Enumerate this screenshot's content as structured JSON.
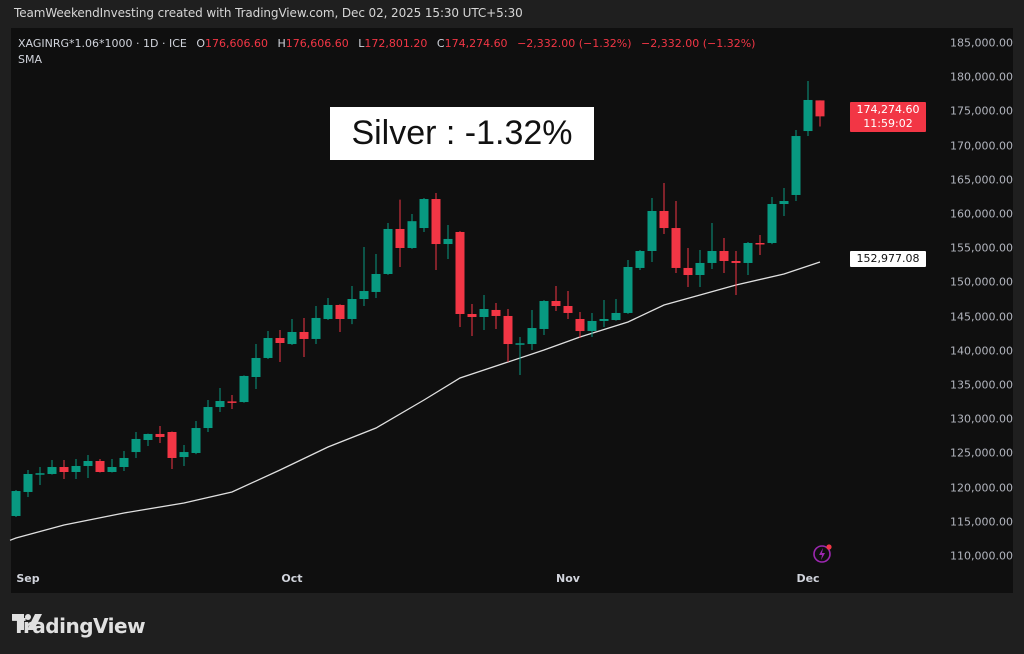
{
  "credit": "TeamWeekendInvesting created with TradingView.com, Dec 02, 2025 15:30 UTC+5:30",
  "legend": {
    "symbol": "XAGINRG*1.06*1000 · 1D · ICE",
    "o_label": "O",
    "o": "176,606.60",
    "h_label": "H",
    "h": "176,606.60",
    "l_label": "L",
    "l": "172,801.20",
    "c_label": "C",
    "c": "174,274.60",
    "change": "−2,332.00 (−1.32%)",
    "change2": "−2,332.00 (−1.32%)",
    "indicator": "SMA"
  },
  "annotation": "Silver : -1.32%",
  "last_price_tag": {
    "price": "174,274.60",
    "countdown": "11:59:02"
  },
  "sma_tag": "152,977.08",
  "logo_text": "TradingView",
  "colors": {
    "up": "#089981",
    "down": "#f23645",
    "sma": "#e0e0e0",
    "background": "#0f0f0f",
    "bolt": "#9c27b0"
  },
  "icons": [
    "tradingview-logo-icon",
    "lightning-bolt-icon"
  ],
  "chart_data": {
    "type": "candlestick",
    "interval": "1D",
    "ylim": [
      110000,
      185000
    ],
    "grid": false,
    "price_ticks": [
      "185,000.00",
      "180,000.00",
      "175,000.00",
      "170,000.00",
      "165,000.00",
      "160,000.00",
      "155,000.00",
      "150,000.00",
      "145,000.00",
      "140,000.00",
      "135,000.00",
      "130,000.00",
      "125,000.00",
      "120,000.00",
      "115,000.00",
      "110,000.00"
    ],
    "price_tick_values": [
      185000,
      180000,
      175000,
      170000,
      165000,
      160000,
      155000,
      150000,
      145000,
      140000,
      135000,
      130000,
      125000,
      120000,
      115000,
      110000
    ],
    "time_ticks": [
      {
        "label": "Sep",
        "date": "2025-09-01"
      },
      {
        "label": "Oct",
        "date": "2025-10-01"
      },
      {
        "label": "Nov",
        "date": "2025-11-03"
      },
      {
        "label": "Dec",
        "date": "2025-12-01"
      }
    ],
    "candles": [
      {
        "date": "2025-08-29",
        "o": 115850,
        "h": 119650,
        "l": 115700,
        "c": 119500
      },
      {
        "date": "2025-09-01",
        "o": 119360,
        "h": 122570,
        "l": 118630,
        "c": 121990
      },
      {
        "date": "2025-09-02",
        "o": 121990,
        "h": 123010,
        "l": 120380,
        "c": 122100
      },
      {
        "date": "2025-09-03",
        "o": 121990,
        "h": 124040,
        "l": 121900,
        "c": 123010
      },
      {
        "date": "2025-09-04",
        "o": 123010,
        "h": 124040,
        "l": 121260,
        "c": 122280
      },
      {
        "date": "2025-09-05",
        "o": 122280,
        "h": 124180,
        "l": 121260,
        "c": 123160
      },
      {
        "date": "2025-09-08",
        "o": 123160,
        "h": 124770,
        "l": 121400,
        "c": 123890
      },
      {
        "date": "2025-09-09",
        "o": 123890,
        "h": 124180,
        "l": 122200,
        "c": 122280
      },
      {
        "date": "2025-09-10",
        "o": 122280,
        "h": 124180,
        "l": 122200,
        "c": 123010
      },
      {
        "date": "2025-09-11",
        "o": 123010,
        "h": 125350,
        "l": 122430,
        "c": 124330
      },
      {
        "date": "2025-09-12",
        "o": 125200,
        "h": 128130,
        "l": 124330,
        "c": 127110
      },
      {
        "date": "2025-09-15",
        "o": 126960,
        "h": 127900,
        "l": 126080,
        "c": 127840
      },
      {
        "date": "2025-09-16",
        "o": 127840,
        "h": 129010,
        "l": 126520,
        "c": 127400
      },
      {
        "date": "2025-09-17",
        "o": 128130,
        "h": 128200,
        "l": 122720,
        "c": 124330
      },
      {
        "date": "2025-09-18",
        "o": 124470,
        "h": 126230,
        "l": 123160,
        "c": 125200
      },
      {
        "date": "2025-09-19",
        "o": 125060,
        "h": 129740,
        "l": 124900,
        "c": 128710
      },
      {
        "date": "2025-09-22",
        "o": 128710,
        "h": 132810,
        "l": 128130,
        "c": 131780
      },
      {
        "date": "2025-09-23",
        "o": 131780,
        "h": 134560,
        "l": 131050,
        "c": 132660
      },
      {
        "date": "2025-09-24",
        "o": 132600,
        "h": 133540,
        "l": 131490,
        "c": 132510
      },
      {
        "date": "2025-09-25",
        "o": 132510,
        "h": 136400,
        "l": 132400,
        "c": 136320
      },
      {
        "date": "2025-09-26",
        "o": 136170,
        "h": 140990,
        "l": 134420,
        "c": 138950
      },
      {
        "date": "2025-09-29",
        "o": 138950,
        "h": 142890,
        "l": 138800,
        "c": 141870
      },
      {
        "date": "2025-09-30",
        "o": 141870,
        "h": 143040,
        "l": 138360,
        "c": 141140
      },
      {
        "date": "2025-10-01",
        "o": 140990,
        "h": 144650,
        "l": 140850,
        "c": 142750
      },
      {
        "date": "2025-10-02",
        "o": 142750,
        "h": 144800,
        "l": 139090,
        "c": 141730
      },
      {
        "date": "2025-10-03",
        "o": 141730,
        "h": 146550,
        "l": 140990,
        "c": 144800
      },
      {
        "date": "2025-10-06",
        "o": 144650,
        "h": 147720,
        "l": 144500,
        "c": 146700
      },
      {
        "date": "2025-10-07",
        "o": 146700,
        "h": 146800,
        "l": 142750,
        "c": 144650
      },
      {
        "date": "2025-10-08",
        "o": 144650,
        "h": 149470,
        "l": 143900,
        "c": 147570
      },
      {
        "date": "2025-10-09",
        "o": 147570,
        "h": 155180,
        "l": 146550,
        "c": 148740
      },
      {
        "date": "2025-10-10",
        "o": 148600,
        "h": 154150,
        "l": 147720,
        "c": 151230
      },
      {
        "date": "2025-10-13",
        "o": 151230,
        "h": 158680,
        "l": 151100,
        "c": 157810
      },
      {
        "date": "2025-10-14",
        "o": 157810,
        "h": 162100,
        "l": 152250,
        "c": 155030
      },
      {
        "date": "2025-10-15",
        "o": 155030,
        "h": 160000,
        "l": 154900,
        "c": 158950
      },
      {
        "date": "2025-10-16",
        "o": 157950,
        "h": 162340,
        "l": 157370,
        "c": 162190
      },
      {
        "date": "2025-10-17",
        "o": 162190,
        "h": 163070,
        "l": 151810,
        "c": 155610
      },
      {
        "date": "2025-10-20",
        "o": 155610,
        "h": 158390,
        "l": 153420,
        "c": 156350
      },
      {
        "date": "2025-10-21",
        "o": 157370,
        "h": 157500,
        "l": 143480,
        "c": 145380
      },
      {
        "date": "2025-10-22",
        "o": 145380,
        "h": 146840,
        "l": 142160,
        "c": 144940
      },
      {
        "date": "2025-10-23",
        "o": 144940,
        "h": 148160,
        "l": 143040,
        "c": 146110
      },
      {
        "date": "2025-10-24",
        "o": 145970,
        "h": 146990,
        "l": 143190,
        "c": 145090
      },
      {
        "date": "2025-10-27",
        "o": 145090,
        "h": 146110,
        "l": 138360,
        "c": 140990
      },
      {
        "date": "2025-10-28",
        "o": 140990,
        "h": 142020,
        "l": 136460,
        "c": 141100
      },
      {
        "date": "2025-10-29",
        "o": 140990,
        "h": 145970,
        "l": 140120,
        "c": 143330
      },
      {
        "date": "2025-10-30",
        "o": 143190,
        "h": 147400,
        "l": 142310,
        "c": 147280
      },
      {
        "date": "2025-10-31",
        "o": 147280,
        "h": 149470,
        "l": 145820,
        "c": 146550
      },
      {
        "date": "2025-11-03",
        "o": 146550,
        "h": 148740,
        "l": 144650,
        "c": 145530
      },
      {
        "date": "2025-11-04",
        "o": 144650,
        "h": 145670,
        "l": 141870,
        "c": 142890
      },
      {
        "date": "2025-11-05",
        "o": 142890,
        "h": 145530,
        "l": 142020,
        "c": 144360
      },
      {
        "date": "2025-11-06",
        "o": 144360,
        "h": 147430,
        "l": 143480,
        "c": 144650
      },
      {
        "date": "2025-11-07",
        "o": 144500,
        "h": 147570,
        "l": 144400,
        "c": 145530
      },
      {
        "date": "2025-11-10",
        "o": 145530,
        "h": 153280,
        "l": 145400,
        "c": 152250
      },
      {
        "date": "2025-11-11",
        "o": 152110,
        "h": 154740,
        "l": 151810,
        "c": 154590
      },
      {
        "date": "2025-11-12",
        "o": 154590,
        "h": 162340,
        "l": 152980,
        "c": 160440
      },
      {
        "date": "2025-11-13",
        "o": 160440,
        "h": 164530,
        "l": 157080,
        "c": 157950
      },
      {
        "date": "2025-11-14",
        "o": 157950,
        "h": 161900,
        "l": 151370,
        "c": 152110
      },
      {
        "date": "2025-11-17",
        "o": 152110,
        "h": 155030,
        "l": 149330,
        "c": 151080
      },
      {
        "date": "2025-11-18",
        "o": 151080,
        "h": 154740,
        "l": 149330,
        "c": 152840
      },
      {
        "date": "2025-11-19",
        "o": 152840,
        "h": 158680,
        "l": 151960,
        "c": 154590
      },
      {
        "date": "2025-11-20",
        "o": 154590,
        "h": 156490,
        "l": 151370,
        "c": 153130
      },
      {
        "date": "2025-11-21",
        "o": 153130,
        "h": 154590,
        "l": 148160,
        "c": 152840
      },
      {
        "date": "2025-11-24",
        "o": 152840,
        "h": 155900,
        "l": 151080,
        "c": 155760
      },
      {
        "date": "2025-11-25",
        "o": 155760,
        "h": 156930,
        "l": 154010,
        "c": 155700
      },
      {
        "date": "2025-11-26",
        "o": 155760,
        "h": 162490,
        "l": 155600,
        "c": 161460
      },
      {
        "date": "2025-11-27",
        "o": 161460,
        "h": 163800,
        "l": 159710,
        "c": 161900
      },
      {
        "date": "2025-11-28",
        "o": 162780,
        "h": 172280,
        "l": 161900,
        "c": 171400
      },
      {
        "date": "2025-12-01",
        "o": 172130,
        "h": 179440,
        "l": 171400,
        "c": 176670
      },
      {
        "date": "2025-12-02",
        "o": 176606.6,
        "h": 176606.6,
        "l": 172801.2,
        "c": 174274.6
      }
    ],
    "sma": [
      {
        "date": "2025-08-29",
        "v": 112630
      },
      {
        "date": "2025-09-04",
        "v": 114530
      },
      {
        "date": "2025-09-11",
        "v": 116290
      },
      {
        "date": "2025-09-18",
        "v": 117750
      },
      {
        "date": "2025-09-24",
        "v": 119360
      },
      {
        "date": "2025-09-30",
        "v": 122570
      },
      {
        "date": "2025-10-06",
        "v": 125940
      },
      {
        "date": "2025-10-10",
        "v": 128710
      },
      {
        "date": "2025-10-16",
        "v": 132810
      },
      {
        "date": "2025-10-21",
        "v": 136020
      },
      {
        "date": "2025-10-27",
        "v": 138360
      },
      {
        "date": "2025-10-30",
        "v": 140120
      },
      {
        "date": "2025-11-04",
        "v": 142020
      },
      {
        "date": "2025-11-10",
        "v": 144210
      },
      {
        "date": "2025-11-13",
        "v": 146700
      },
      {
        "date": "2025-11-18",
        "v": 148160
      },
      {
        "date": "2025-11-21",
        "v": 149620
      },
      {
        "date": "2025-11-27",
        "v": 151230
      },
      {
        "date": "2025-12-02",
        "v": 152977.08
      }
    ]
  }
}
